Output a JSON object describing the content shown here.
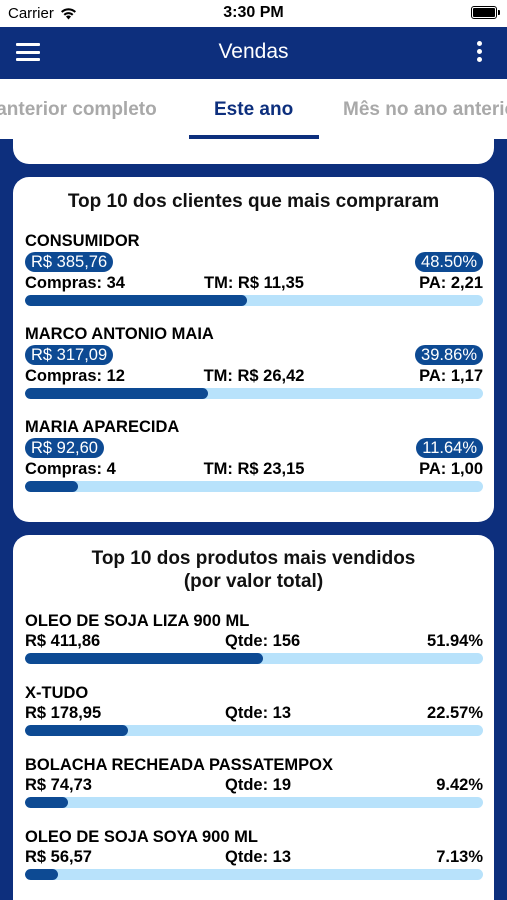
{
  "status_bar": {
    "carrier": "Carrier",
    "time": "3:30 PM"
  },
  "nav": {
    "title": "Vendas",
    "menu_icon": "hamburger-menu-icon",
    "more_icon": "more-vertical-icon"
  },
  "tabs": [
    {
      "label": "Mês anterior completo",
      "active": false
    },
    {
      "label": "Este ano",
      "active": true
    },
    {
      "label": "Mês no ano anterior",
      "active": false
    }
  ],
  "customers": {
    "title": "Top 10 dos clientes que mais compraram",
    "items": [
      {
        "name": "CONSUMIDOR",
        "value": "R$ 385,76",
        "percent": "48.50%",
        "purchases": "Compras: 34",
        "tm": "TM: R$ 11,35",
        "pa": "PA: 2,21",
        "share": 48.5
      },
      {
        "name": "MARCO ANTONIO MAIA",
        "value": "R$ 317,09",
        "percent": "39.86%",
        "purchases": "Compras: 12",
        "tm": "TM: R$ 26,42",
        "pa": "PA: 1,17",
        "share": 39.86
      },
      {
        "name": "MARIA APARECIDA",
        "value": "R$ 92,60",
        "percent": "11.64%",
        "purchases": "Compras: 4",
        "tm": "TM: R$ 23,15",
        "pa": "PA: 1,00",
        "share": 11.64
      }
    ]
  },
  "products": {
    "title_line1": "Top 10 dos produtos mais vendidos",
    "title_line2": "(por valor total)",
    "items": [
      {
        "name": "OLEO DE SOJA LIZA 900 ML",
        "value": "R$ 411,86",
        "qty": "Qtde: 156",
        "percent": "51.94%",
        "share": 51.94
      },
      {
        "name": "X-TUDO",
        "value": "R$ 178,95",
        "qty": "Qtde: 13",
        "percent": "22.57%",
        "share": 22.57
      },
      {
        "name": "BOLACHA RECHEADA PASSATEMPOX",
        "value": "R$ 74,73",
        "qty": "Qtde: 19",
        "percent": "9.42%",
        "share": 9.42
      },
      {
        "name": "OLEO DE SOJA SOYA 900 ML",
        "value": "R$ 56,57",
        "qty": "Qtde: 13",
        "percent": "7.13%",
        "share": 7.13
      }
    ]
  },
  "colors": {
    "primary": "#0d2f7d",
    "pill": "#0d4a93",
    "bar_track": "#b8e2fb",
    "tab_inactive": "#a9a9a9"
  }
}
